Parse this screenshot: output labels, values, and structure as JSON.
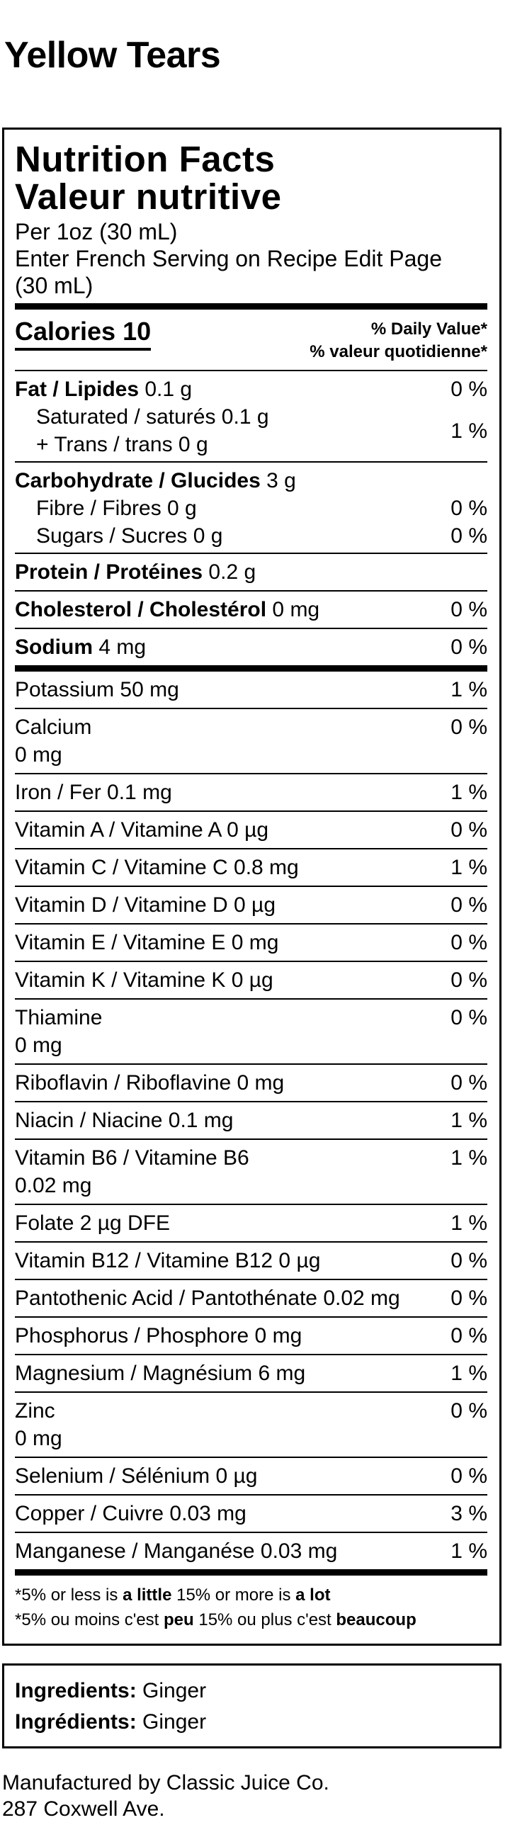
{
  "product": {
    "title": "Yellow Tears"
  },
  "label": {
    "title_en": "Nutrition Facts",
    "title_fr": "Valeur nutritive",
    "serving_line1": "Per 1oz (30 mL)",
    "serving_line2": "Enter French Serving on Recipe Edit Page",
    "serving_line3": "(30 mL)",
    "calories_label": "Calories 10",
    "dv_en": "% Daily Value*",
    "dv_fr": "% valeur quotidienne*",
    "fat": {
      "name": "Fat / Lipides",
      "amount": "0.1 g",
      "pct": "0 %"
    },
    "saturated": {
      "name": "Saturated / saturés 0.1 g"
    },
    "trans": {
      "name": "+ Trans / trans 0 g"
    },
    "sat_trans_pct": "1 %",
    "carb": {
      "name": "Carbohydrate / Glucides",
      "amount": "3 g"
    },
    "fibre": {
      "name": "Fibre / Fibres 0 g",
      "pct": "0 %"
    },
    "sugars": {
      "name": "Sugars / Sucres 0 g",
      "pct": "0 %"
    },
    "protein": {
      "name": "Protein / Protéines",
      "amount": "0.2 g"
    },
    "cholesterol": {
      "name": "Cholesterol / Cholestérol",
      "amount": "0 mg",
      "pct": "0 %"
    },
    "sodium": {
      "name": "Sodium",
      "amount": "4 mg",
      "pct": "0 %"
    },
    "micros": [
      {
        "name": "Potassium 50 mg",
        "pct": "1 %"
      },
      {
        "name": "Calcium",
        "name2": "0 mg",
        "pct": "0 %"
      },
      {
        "name": "Iron / Fer 0.1 mg",
        "pct": "1 %"
      },
      {
        "name": "Vitamin A / Vitamine A 0 µg",
        "pct": "0 %"
      },
      {
        "name": "Vitamin C / Vitamine C 0.8 mg",
        "pct": "1 %"
      },
      {
        "name": "Vitamin D / Vitamine D 0 µg",
        "pct": "0 %"
      },
      {
        "name": "Vitamin E / Vitamine E 0 mg",
        "pct": "0 %"
      },
      {
        "name": "Vitamin K / Vitamine K 0 µg",
        "pct": "0 %"
      },
      {
        "name": "Thiamine",
        "name2": "0 mg",
        "pct": "0 %"
      },
      {
        "name": "Riboflavin / Riboflavine 0 mg",
        "pct": "0 %"
      },
      {
        "name": "Niacin / Niacine 0.1 mg",
        "pct": "1 %"
      },
      {
        "name": "Vitamin B6 / Vitamine B6",
        "name2": "0.02 mg",
        "pct": "1 %"
      },
      {
        "name": "Folate 2 µg DFE",
        "pct": "1 %"
      },
      {
        "name": "Vitamin B12 / Vitamine B12 0 µg",
        "pct": "0 %"
      },
      {
        "name": "Pantothenic Acid / Pantothénate 0.02 mg",
        "pct": "0 %"
      },
      {
        "name": "Phosphorus / Phosphore 0 mg",
        "pct": "0 %"
      },
      {
        "name": "Magnesium / Magnésium 6 mg",
        "pct": "1 %"
      },
      {
        "name": "Zinc",
        "name2": "0 mg",
        "pct": "0 %"
      },
      {
        "name": "Selenium / Sélénium 0 µg",
        "pct": "0 %"
      },
      {
        "name": "Copper / Cuivre 0.03 mg",
        "pct": "3 %"
      },
      {
        "name": "Manganese / Manganése 0.03 mg",
        "pct": "1 %"
      }
    ],
    "footnote_en": {
      "a": "*5% or less is ",
      "b": "a little",
      "c": " 15% or more is ",
      "d": "a lot"
    },
    "footnote_fr": {
      "a": "*5% ou moins c'est ",
      "b": "peu",
      "c": " 15% ou plus c'est ",
      "d": "beaucoup"
    }
  },
  "ingredients": {
    "en_label": "Ingredients:",
    "en_value": " Ginger",
    "fr_label": "Ingrédients:",
    "fr_value": " Ginger"
  },
  "manufacturer": {
    "line1": "Manufactured by Classic Juice Co.",
    "line2": "287 Coxwell Ave."
  }
}
